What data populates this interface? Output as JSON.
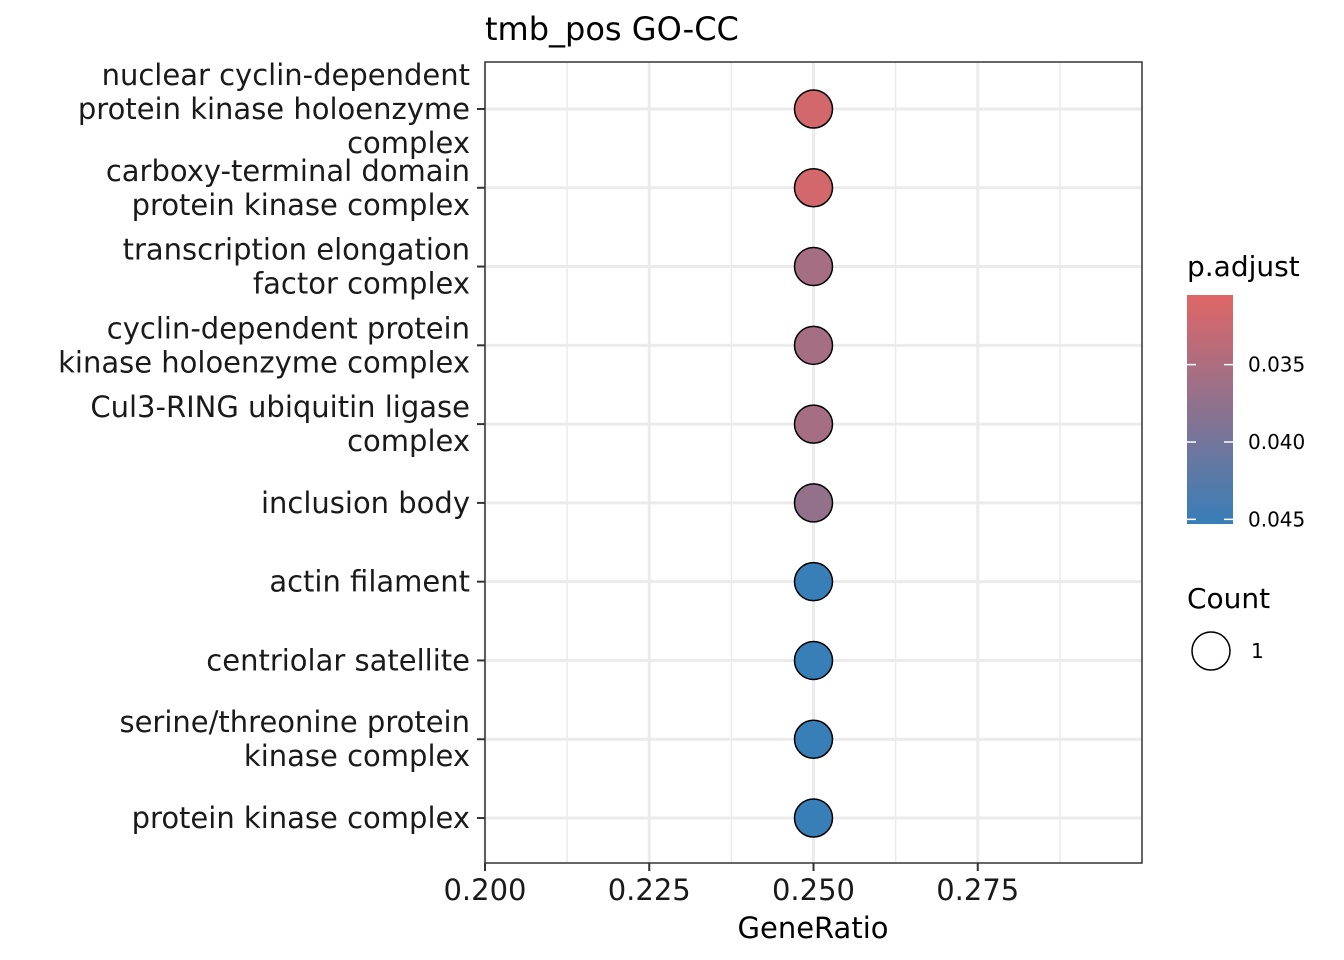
{
  "chart_data": {
    "type": "scatter",
    "title": "tmb_pos GO-CC",
    "xlabel": "GeneRatio",
    "ylabel": "",
    "xlim": [
      0.2,
      0.3
    ],
    "x_ticks": [
      "0.200",
      "0.225",
      "0.250",
      "0.275"
    ],
    "x_tick_values": [
      0.2,
      0.225,
      0.25,
      0.275
    ],
    "grid": true,
    "categories": [
      "nuclear cyclin-dependent protein kinase holoenzyme complex",
      "carboxy-terminal domain protein kinase complex",
      "transcription elongation factor complex",
      "cyclin-dependent protein kinase holoenzyme complex",
      "Cul3-RING ubiquitin ligase complex",
      "inclusion body",
      "actin filament",
      "centriolar satellite",
      "serine/threonine protein kinase complex",
      "protein kinase complex"
    ],
    "category_lines": [
      [
        "nuclear cyclin-dependent",
        "protein kinase holoenzyme",
        "complex"
      ],
      [
        "carboxy-terminal domain",
        "protein kinase complex"
      ],
      [
        "transcription elongation",
        "factor complex"
      ],
      [
        "cyclin-dependent protein",
        "kinase holoenzyme complex"
      ],
      [
        "Cul3-RING ubiquitin ligase",
        "complex"
      ],
      [
        "inclusion body"
      ],
      [
        "actin filament"
      ],
      [
        "centriolar satellite"
      ],
      [
        "serine/threonine protein",
        "kinase complex"
      ],
      [
        "protein kinase complex"
      ]
    ],
    "x": [
      0.25,
      0.25,
      0.25,
      0.25,
      0.25,
      0.25,
      0.25,
      0.25,
      0.25,
      0.25
    ],
    "count": [
      1,
      1,
      1,
      1,
      1,
      1,
      1,
      1,
      1,
      1
    ],
    "p_adjust": [
      0.0316,
      0.0316,
      0.0357,
      0.0357,
      0.0357,
      0.0372,
      0.0452,
      0.0452,
      0.0452,
      0.0452
    ],
    "color_legend": {
      "title": "p.adjust",
      "range": [
        0.0305,
        0.0453
      ],
      "ticks": [
        "0.035",
        "0.040",
        "0.045"
      ],
      "tick_values": [
        0.035,
        0.04,
        0.045
      ],
      "low_color": "#e06666",
      "high_color": "#377eb8"
    },
    "size_legend": {
      "title": "Count",
      "values": [
        "1"
      ]
    },
    "legend_position": "right"
  }
}
